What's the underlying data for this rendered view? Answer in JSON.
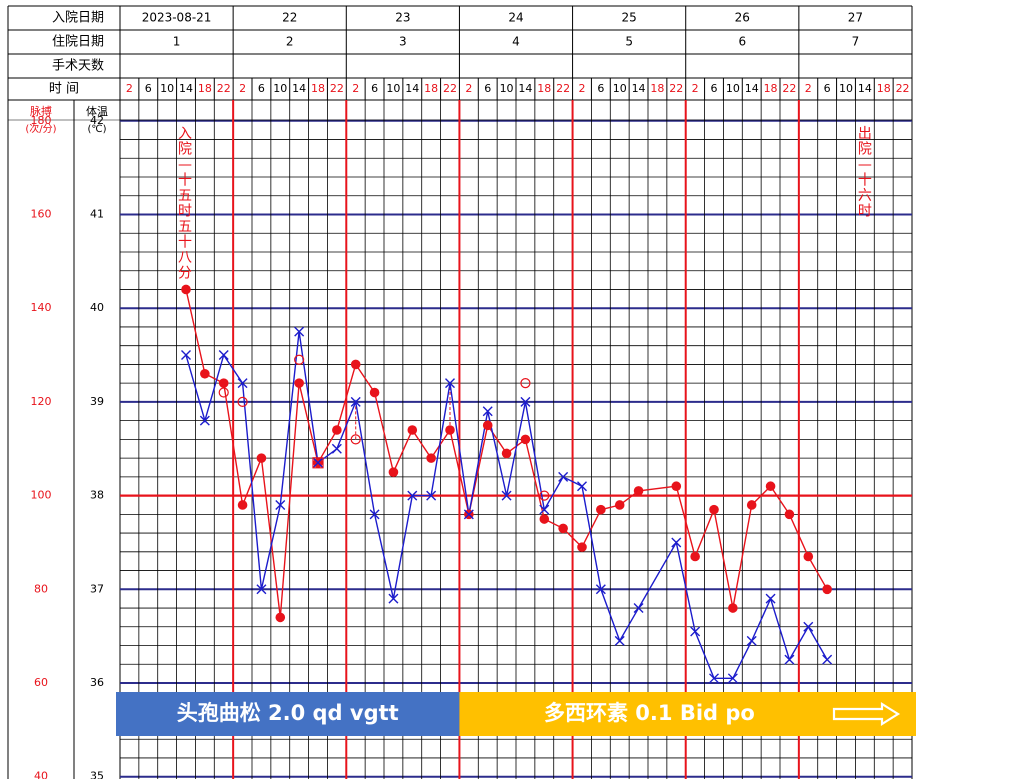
{
  "header_rows": {
    "admission_date_label": "入院日期",
    "day_in_hospital_label": "住院日期",
    "post_op_days_label": "手术天数",
    "time_label": "时    间",
    "dates": [
      "2023-08-21",
      "22",
      "23",
      "24",
      "25",
      "26",
      "27"
    ],
    "hospital_days": [
      "1",
      "2",
      "3",
      "4",
      "5",
      "6",
      "7"
    ],
    "time_slots": [
      "2",
      "6",
      "10",
      "14",
      "18",
      "22"
    ]
  },
  "axis_headers": {
    "pulse_title": "脉搏",
    "pulse_unit": "(次/分)",
    "temp_title": "体温",
    "temp_unit": "(℃)"
  },
  "pulse_ticks": [
    "180",
    "160",
    "140",
    "120",
    "100",
    "80",
    "60",
    "40"
  ],
  "temp_ticks": [
    "42",
    "41",
    "40",
    "39",
    "38",
    "37",
    "36",
    "35"
  ],
  "annotations": {
    "admit_chars": [
      "入",
      "院",
      "—",
      "十",
      "五",
      "时",
      "五",
      "十",
      "八",
      "分"
    ],
    "discharge_chars": [
      "出",
      "院",
      "—",
      "十",
      "六",
      "时"
    ]
  },
  "medications": [
    {
      "text": "头孢曲松 2.0 qd vgtt",
      "color": "#4472c4"
    },
    {
      "text": "多西环素 0.1 Bid po",
      "color": "#ffc000"
    }
  ],
  "colors": {
    "grid_blue": "#2c2c8c",
    "red": "#e8131b",
    "temp_line": "#1c1ccc",
    "pulse_line": "#e8131b"
  },
  "chart_data": {
    "type": "line",
    "x_unit": "slot index (6 slots per day: 2,6,10,14,18,22 h)",
    "categories_days": [
      "2023-08-21",
      "22",
      "23",
      "24",
      "25",
      "26",
      "27"
    ],
    "y_temp_range": [
      35,
      42
    ],
    "y_pulse_range": [
      40,
      180
    ],
    "series": [
      {
        "name": "体温",
        "marker": "x",
        "points": [
          [
            3.5,
            39.5
          ],
          [
            4.5,
            38.8
          ],
          [
            5.5,
            39.5
          ],
          [
            6.5,
            39.2
          ],
          [
            7.5,
            37.0
          ],
          [
            8.5,
            37.9
          ],
          [
            9.5,
            39.75
          ],
          [
            10.5,
            38.35
          ],
          [
            11.5,
            38.5
          ],
          [
            12.5,
            39.0
          ],
          [
            13.5,
            37.8
          ],
          [
            14.5,
            36.9
          ],
          [
            15.5,
            38.0
          ],
          [
            16.5,
            38.0
          ],
          [
            17.5,
            39.2
          ],
          [
            18.5,
            37.8
          ],
          [
            19.5,
            38.9
          ],
          [
            20.5,
            38.0
          ],
          [
            21.5,
            39.0
          ],
          [
            22.5,
            37.85
          ],
          [
            23.5,
            38.2
          ],
          [
            24.5,
            38.1
          ],
          [
            25.5,
            37.0
          ],
          [
            26.5,
            36.45
          ],
          [
            27.5,
            36.8
          ],
          [
            29.5,
            37.5
          ],
          [
            30.5,
            36.55
          ],
          [
            31.5,
            36.05
          ],
          [
            32.5,
            36.05
          ],
          [
            33.5,
            36.45
          ],
          [
            34.5,
            36.9
          ],
          [
            35.5,
            36.25
          ],
          [
            36.5,
            36.6
          ],
          [
            37.5,
            36.25
          ]
        ]
      },
      {
        "name": "脉搏",
        "marker": "filled-circle",
        "points": [
          [
            3.5,
            144
          ],
          [
            4.5,
            126
          ],
          [
            5.5,
            124
          ],
          [
            6.5,
            98
          ],
          [
            7.5,
            108
          ],
          [
            8.5,
            74
          ],
          [
            9.5,
            124
          ],
          [
            10.5,
            107
          ],
          [
            11.5,
            114
          ],
          [
            12.5,
            128
          ],
          [
            13.5,
            122
          ],
          [
            14.5,
            105
          ],
          [
            15.5,
            114
          ],
          [
            16.5,
            108
          ],
          [
            17.5,
            114
          ],
          [
            18.5,
            96
          ],
          [
            19.5,
            115
          ],
          [
            20.5,
            109
          ],
          [
            21.5,
            112
          ],
          [
            22.5,
            95
          ],
          [
            23.5,
            93
          ],
          [
            24.5,
            89
          ],
          [
            25.5,
            97
          ],
          [
            26.5,
            98
          ],
          [
            27.5,
            101
          ],
          [
            29.5,
            102
          ],
          [
            30.5,
            87
          ],
          [
            31.5,
            97
          ],
          [
            32.5,
            76
          ],
          [
            33.5,
            98
          ],
          [
            34.5,
            102
          ],
          [
            35.5,
            96
          ],
          [
            36.5,
            87
          ],
          [
            37.5,
            80
          ]
        ]
      }
    ],
    "hollow_circle_markers": [
      [
        5.5,
        39.1
      ],
      [
        6.5,
        39.0
      ],
      [
        9.5,
        39.45
      ],
      [
        12.5,
        38.6
      ],
      [
        21.5,
        39.2
      ],
      [
        22.5,
        38.0
      ]
    ],
    "red_dashed_links": [
      [
        12.5,
        38.6,
        39.0
      ],
      [
        17.5,
        38.7,
        39.2
      ]
    ],
    "reference_lines": {
      "temp_38": 38
    }
  }
}
